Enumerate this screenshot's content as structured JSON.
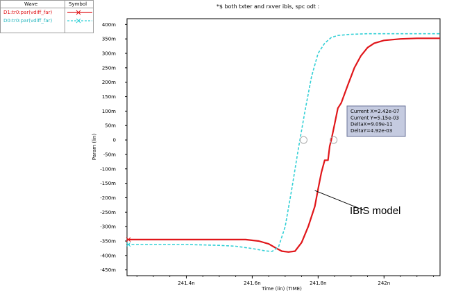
{
  "legend": {
    "header_wave": "Wave",
    "header_symbol": "Symbol",
    "entries": [
      {
        "label": "D1:tr0:par(vdiff_far)",
        "color": "#e0161a",
        "dash": false,
        "marker": "x"
      },
      {
        "label": "D0:tr0:par(vdiff_far)",
        "color": "#33d0d6",
        "dash": true,
        "marker": "x"
      }
    ]
  },
  "chart_data": {
    "type": "line",
    "title": "*$ both txter and rxver ibis, spc odt :",
    "xlabel": "Time (lin) (TIME)",
    "ylabel": "Param (lin)",
    "xlim": [
      241.22,
      242.17
    ],
    "ylim": [
      -470,
      420
    ],
    "x_unit": "n",
    "y_unit": "m",
    "grid": true,
    "x_ticks": [
      241.4,
      241.6,
      241.8,
      242.0
    ],
    "x_tick_labels": [
      "241.4n",
      "241.6n",
      "241.8n",
      "242n"
    ],
    "y_ticks": [
      400,
      350,
      300,
      250,
      200,
      150,
      100,
      50,
      0,
      -50,
      -100,
      -150,
      -200,
      -250,
      -300,
      -350,
      -400,
      -450
    ],
    "y_tick_labels": [
      "400m",
      "350m",
      "300m",
      "250m",
      "200m",
      "150m",
      "100m",
      "50m",
      "0",
      "-50m",
      "-100m",
      "-150m",
      "-200m",
      "-250m",
      "-300m",
      "-350m",
      "-400m",
      "-450m"
    ],
    "series": [
      {
        "name": "D1:tr0:par(vdiff_far)",
        "color": "#e0161a",
        "dash": false,
        "x": [
          241.22,
          241.3,
          241.4,
          241.5,
          241.55,
          241.58,
          241.62,
          241.65,
          241.67,
          241.69,
          241.71,
          241.73,
          241.75,
          241.77,
          241.79,
          241.8,
          241.81,
          241.82,
          241.83,
          241.835,
          241.84,
          241.85,
          241.86,
          241.87,
          241.89,
          241.91,
          241.93,
          241.95,
          241.97,
          242.0,
          242.05,
          242.1,
          242.17
        ],
        "y": [
          -345,
          -345,
          -345,
          -345,
          -345,
          -345,
          -350,
          -360,
          -373,
          -385,
          -388,
          -385,
          -355,
          -300,
          -230,
          -170,
          -112,
          -70,
          -70,
          -22,
          0,
          55,
          110,
          128,
          190,
          250,
          292,
          320,
          335,
          345,
          350,
          352,
          352
        ]
      },
      {
        "name": "D0:tr0:par(vdiff_far)",
        "color": "#33d0d6",
        "dash": true,
        "x": [
          241.22,
          241.3,
          241.4,
          241.5,
          241.55,
          241.6,
          241.64,
          241.66,
          241.68,
          241.7,
          241.72,
          241.74,
          241.76,
          241.78,
          241.8,
          241.82,
          241.84,
          241.86,
          241.9,
          241.95,
          242.0,
          242.1,
          242.17
        ],
        "y": [
          -362,
          -362,
          -362,
          -365,
          -368,
          -376,
          -384,
          -386,
          -370,
          -300,
          -170,
          -30,
          100,
          220,
          300,
          335,
          355,
          362,
          366,
          368,
          368,
          368,
          368
        ]
      }
    ],
    "cursors": [
      {
        "x": 241.756,
        "y": 0
      },
      {
        "x": 241.847,
        "y": 0
      }
    ],
    "measurement_box": {
      "lines": [
        "Current X=2.42e-07",
        "Current Y=5.15e-03",
        "DeltaX=9.09e-11",
        "DeltaY=4.92e-03"
      ]
    },
    "annotation": {
      "text": "IBIS model",
      "arrow_to": {
        "x": 241.79,
        "y": -175
      }
    }
  },
  "colors": {
    "plot_background": "#ffffff",
    "grid": "#c8c8c8",
    "measurement_box_bg": "#c5cbe0",
    "measurement_box_border": "#6a7399"
  }
}
